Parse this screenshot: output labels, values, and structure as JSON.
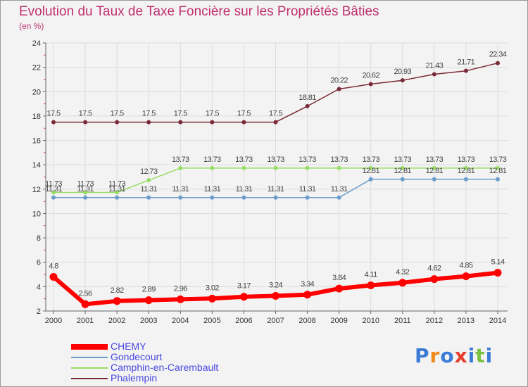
{
  "chart_data": {
    "type": "line",
    "title": "Evolution du Taux de Taxe Foncière sur les Propriétés Bâties",
    "ylabel": "(en %)",
    "xlabel": "",
    "ylim": [
      2,
      24
    ],
    "yticks": [
      2,
      4,
      6,
      8,
      10,
      12,
      14,
      16,
      18,
      20,
      22,
      24
    ],
    "x": [
      "2000",
      "2001",
      "2002",
      "2003",
      "2004",
      "2005",
      "2006",
      "2007",
      "2008",
      "2009",
      "2010",
      "2011",
      "2012",
      "2013",
      "2014"
    ],
    "grid": true,
    "series": [
      {
        "name": "CHEMY",
        "color": "#ff0000",
        "values": [
          4.8,
          2.56,
          2.82,
          2.89,
          2.96,
          3.02,
          3.17,
          3.24,
          3.34,
          3.84,
          4.11,
          4.32,
          4.62,
          4.85,
          5.14
        ],
        "labels": [
          "4.8",
          "2.56",
          "2.82",
          "2.89",
          "2.96",
          "3.02",
          "3.17",
          "3.24",
          "3.34",
          "3.84",
          "4.11",
          "4.32",
          "4.62",
          "4.85",
          "5.14"
        ]
      },
      {
        "name": "Gondecourt",
        "color": "#6c9ccc",
        "values": [
          11.31,
          11.31,
          11.31,
          11.31,
          11.31,
          11.31,
          11.31,
          11.31,
          11.31,
          11.31,
          12.81,
          12.81,
          12.81,
          12.81,
          12.81
        ],
        "labels": [
          "11.31",
          "11.31",
          "11.31",
          "11.31",
          "11.31",
          "11.31",
          "11.31",
          "11.31",
          "11.31",
          "11.31",
          "12.81",
          "12.81",
          "12.81",
          "12.81",
          "12.81"
        ]
      },
      {
        "name": "Camphin-en-Carembault",
        "color": "#99dd66",
        "values": [
          11.73,
          11.73,
          11.73,
          12.73,
          13.73,
          13.73,
          13.73,
          13.73,
          13.73,
          13.73,
          13.73,
          13.73,
          13.73,
          13.73,
          13.73
        ],
        "labels": [
          "11.73",
          "11.73",
          "11.73",
          "12.73",
          "13.73",
          "13.73",
          "13.73",
          "13.73",
          "13.73",
          "13.73",
          "13.73",
          "13.73",
          "13.73",
          "13.73",
          "13.73"
        ]
      },
      {
        "name": "Phalempin",
        "color": "#7a2a36",
        "values": [
          17.5,
          17.5,
          17.5,
          17.5,
          17.5,
          17.5,
          17.5,
          17.5,
          18.81,
          20.22,
          20.62,
          20.93,
          21.43,
          21.71,
          22.34
        ],
        "labels": [
          "17.5",
          "17.5",
          "17.5",
          "17.5",
          "17.5",
          "17.5",
          "17.5",
          "17.5",
          "18.81",
          "20.22",
          "20.62",
          "20.93",
          "21.43",
          "21.71",
          "22.34"
        ]
      }
    ]
  },
  "logo": {
    "letters": [
      "P",
      "r",
      "o",
      "x",
      "i",
      "t",
      "i"
    ],
    "colors": [
      "#3c7bd6",
      "#f08a1c",
      "#3c7bd6",
      "#e63c2c",
      "#3c7bd6",
      "#7ac043",
      "#3c7bd6"
    ]
  }
}
